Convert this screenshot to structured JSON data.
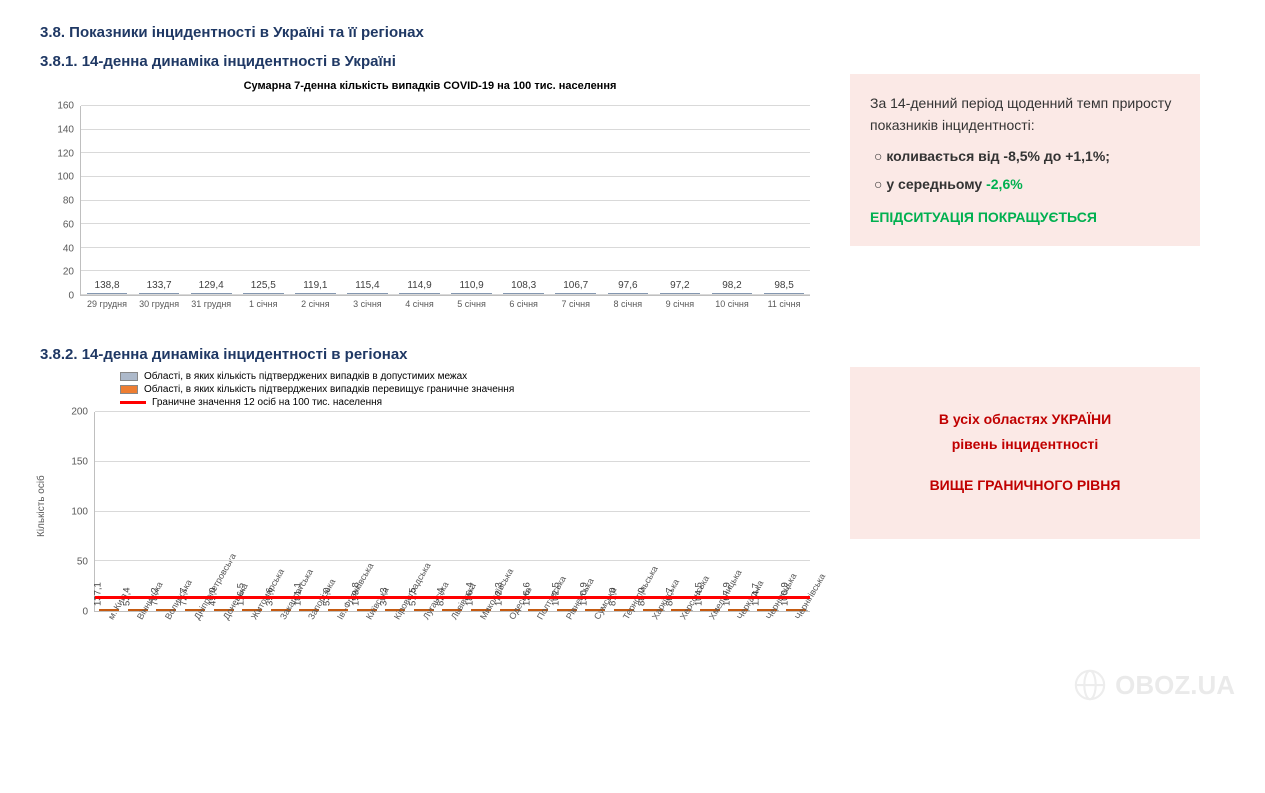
{
  "headings": {
    "h38": "3.8.  Показники інцидентності в Україні та її регіонах",
    "h381": "3.8.1.  14-денна динаміка інцидентності в Україні",
    "h382": "3.8.2.  14-денна динаміка інцидентності в регіонах"
  },
  "chart1": {
    "title": "Сумарна 7-денна кількість випадків COVID-19 на 100 тис. населення",
    "type": "bar",
    "bar_color": "#adb9ca",
    "bar_border": "#8497b0",
    "grid_color": "#d9d9d9",
    "ymax": 160,
    "ytick_step": 20,
    "categories": [
      "29 грудня",
      "30 грудня",
      "31 грудня",
      "1 січня",
      "2 січня",
      "3 січня",
      "4 січня",
      "5 січня",
      "6 січня",
      "7 січня",
      "8 січня",
      "9 січня",
      "10 січня",
      "11 січня"
    ],
    "values": [
      138.8,
      133.7,
      129.4,
      125.5,
      119.1,
      115.4,
      114.9,
      110.9,
      108.3,
      106.7,
      97.6,
      97.2,
      98.2,
      98.5
    ],
    "value_labels": [
      "138,8",
      "133,7",
      "129,4",
      "125,5",
      "119,1",
      "115,4",
      "114,9",
      "110,9",
      "108,3",
      "106,7",
      "97,6",
      "97,2",
      "98,2",
      "98,5"
    ]
  },
  "sidebox1": {
    "intro": "За 14-денний період щоденний темп приросту показників інцидентності:",
    "bullet1": "коливається від -8,5% до +1,1%;",
    "bullet2_prefix": "у середньому ",
    "bullet2_value": "-2,6%",
    "conclusion": "ЕПІДСИТУАЦІЯ ПОКРАЩУЄТЬСЯ"
  },
  "sidebox2": {
    "line1": "В усіх областях УКРАЇНИ",
    "line2": "рівень інцидентності",
    "line3": "ВИЩЕ ГРАНИЧНОГО РІВНЯ"
  },
  "chart2": {
    "type": "bar",
    "ylabel": "Кількість осіб",
    "ymax": 200,
    "ytick_step": 50,
    "threshold": 12,
    "threshold_color": "#ff0000",
    "bar_color": "#ed7d31",
    "bar_border": "#c55a11",
    "legend": {
      "blue": "Області, в яких кількість підтверджених випадків в допустимих межах",
      "orange": "Області, в яких кількість підтверджених випадків перевищує граничне значення",
      "line": "Граничне значення 12 осіб на 100 тис. населення"
    },
    "categories": [
      "м. Київ",
      "Вінницька",
      "Волинська",
      "Дніпропетровська",
      "Донецька",
      "Житомирська",
      "Закарпатська",
      "Запорізька",
      "Ів.-Франківська",
      "Київська",
      "Кіровоградська",
      "Луганська",
      "Львівська",
      "Миколаївська",
      "Одеська",
      "Полтавська",
      "Рівненська",
      "Сумська",
      "Тернопільська",
      "Харківська",
      "Херсонська",
      "Хмельницька",
      "Черкаська",
      "Чернівецька",
      "Чернігівська"
    ],
    "values": [
      137.1,
      53.4,
      78.2,
      72.7,
      49.0,
      116.5,
      39.6,
      181.1,
      53.0,
      159.8,
      34.3,
      51.5,
      82.4,
      186.4,
      142.3,
      126.6,
      102.5,
      130.9,
      81.0,
      88.0,
      86.7,
      104.5,
      167.9,
      114.7,
      100.9
    ],
    "value_labels": [
      "137,1",
      "53,4",
      "78,2",
      "72,7",
      "49,0",
      "116,5",
      "39,6",
      "181,1",
      "53,0",
      "159,8",
      "34,3",
      "51,5",
      "82,4",
      "186,4",
      "142,3",
      "126,6",
      "102,5",
      "130,9",
      "81,0",
      "88,0",
      "86,7",
      "104,5",
      "167,9",
      "114,7",
      "100,9"
    ]
  },
  "watermark": "OBOZ.UA"
}
